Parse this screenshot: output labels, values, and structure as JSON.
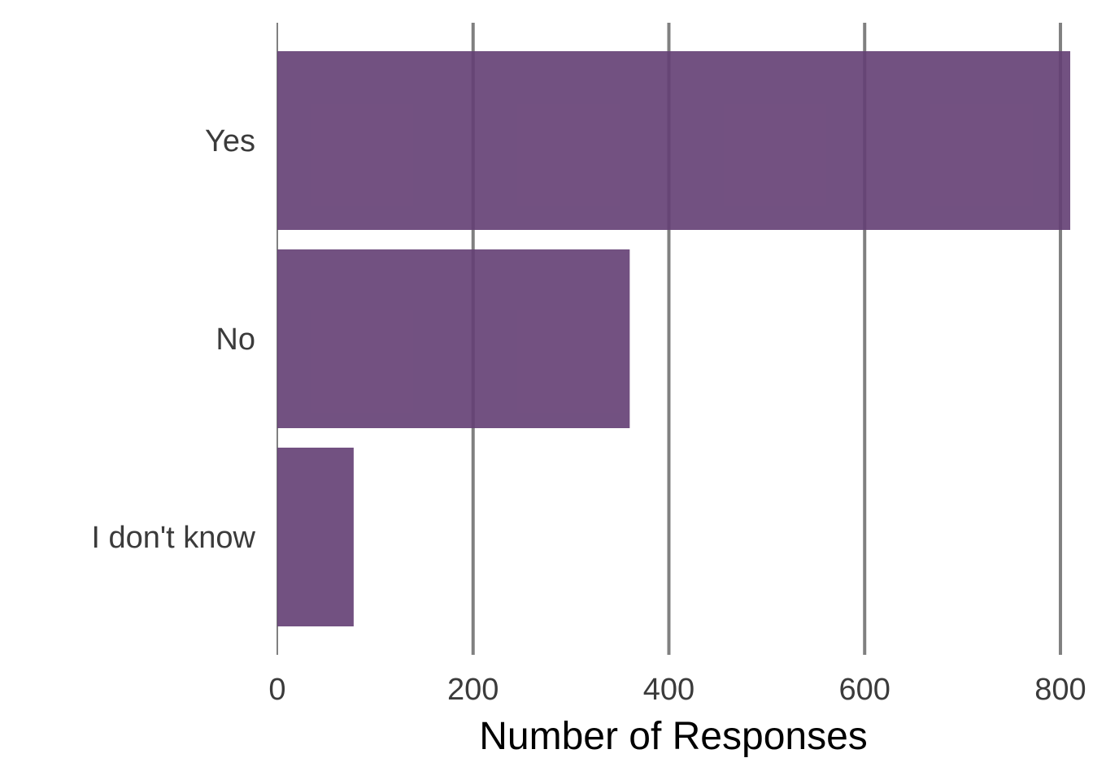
{
  "chart_data": {
    "type": "bar",
    "orientation": "horizontal",
    "title": "",
    "xlabel": "Number of Responses",
    "ylabel": "",
    "categories": [
      "Yes",
      "No",
      "I don't know"
    ],
    "values": [
      810,
      360,
      78
    ],
    "xlim": [
      0,
      810
    ],
    "xticks": [
      0,
      200,
      400,
      600,
      800
    ],
    "xtick_labels": [
      "0",
      "200",
      "400",
      "600",
      "800"
    ],
    "grid": "vertical",
    "legend": "none",
    "colors": {
      "bar": "#633e73",
      "grid": "#808080",
      "text": "#3b3b3b"
    }
  }
}
